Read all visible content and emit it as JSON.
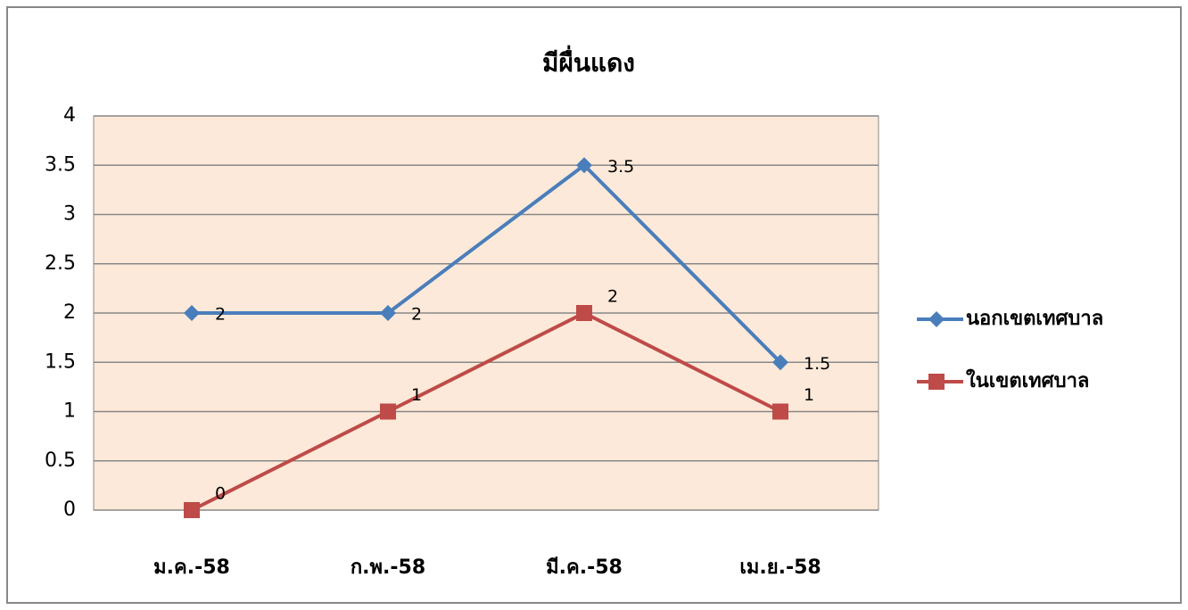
{
  "chart_data": {
    "type": "line",
    "title": "มีผื่นแดง",
    "categories": [
      "ม.ค.-58",
      "ก.พ.-58",
      "มี.ค.-58",
      "เม.ย.-58"
    ],
    "series": [
      {
        "name": "นอกเขตเทศบาล",
        "color": "#4a7ebb",
        "marker": "diamond",
        "values": [
          2,
          2,
          3.5,
          1.5
        ]
      },
      {
        "name": "ในเขตเทศบาล",
        "color": "#be4b48",
        "marker": "square",
        "values": [
          0,
          1,
          2,
          1
        ]
      }
    ],
    "ylim": [
      0,
      4
    ],
    "yticks": [
      0,
      0.5,
      1,
      1.5,
      2,
      2.5,
      3,
      3.5,
      4
    ],
    "grid": true,
    "legend": "right",
    "plot_background": "#fde9d9"
  }
}
